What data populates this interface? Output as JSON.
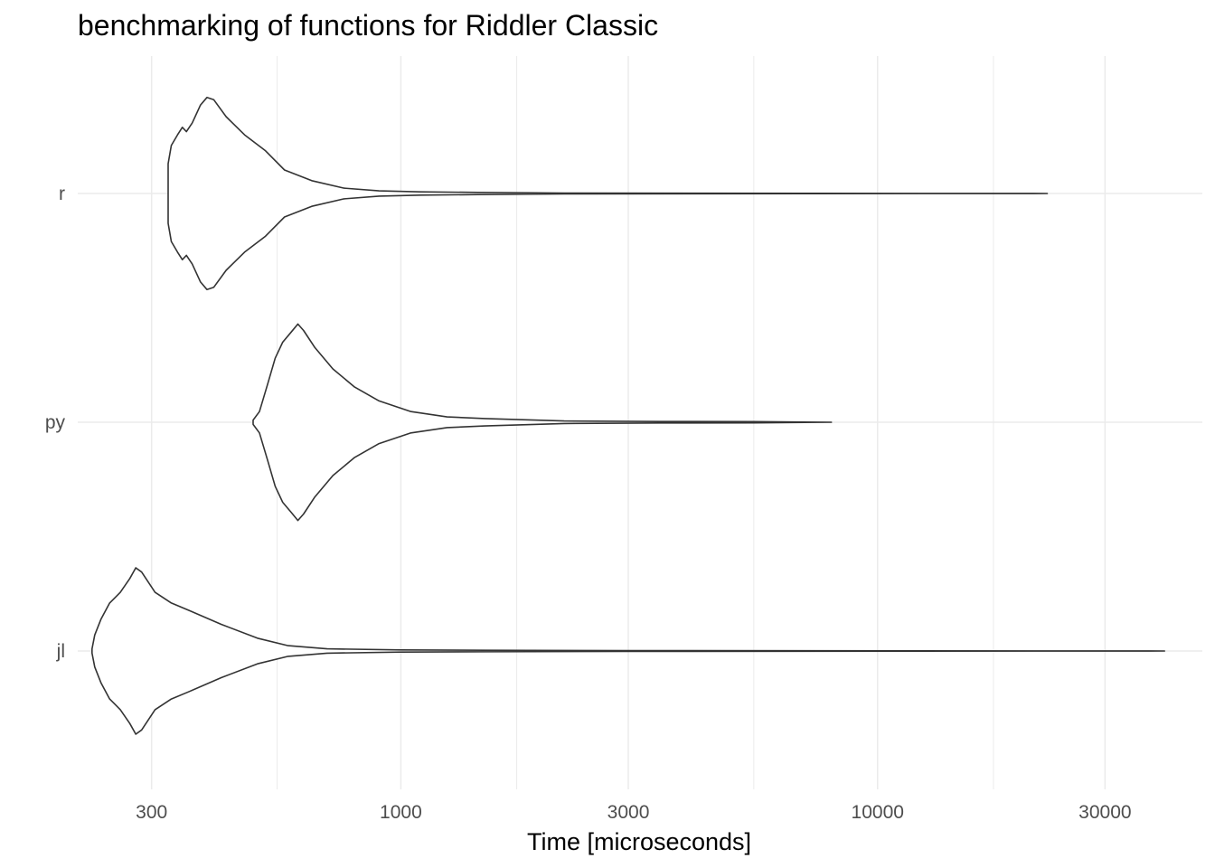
{
  "chart_data": {
    "type": "violin",
    "title": "benchmarking of functions for Riddler Classic",
    "xlabel": "Time [microseconds]",
    "ylabel": "",
    "x_scale": "log10",
    "xlim": [
      210,
      48000
    ],
    "x_ticks": [
      300,
      1000,
      3000,
      10000,
      30000
    ],
    "x_tick_labels": [
      "300",
      "1000",
      "3000",
      "10000",
      "30000"
    ],
    "x_minor_gridlines": [
      550,
      1750,
      5500,
      17500
    ],
    "categories": [
      "r",
      "py",
      "jl"
    ],
    "grid": true,
    "legend": "none",
    "colors": {
      "outline": "#333333",
      "grid": "#ebebeb",
      "tick_text": "#4d4d4d"
    },
    "series": [
      {
        "name": "r",
        "range": [
          325,
          22700
        ],
        "density": [
          [
            325,
            0.28
          ],
          [
            330,
            0.45
          ],
          [
            340,
            0.55
          ],
          [
            348,
            0.62
          ],
          [
            355,
            0.58
          ],
          [
            365,
            0.66
          ],
          [
            380,
            0.83
          ],
          [
            392,
            0.9
          ],
          [
            405,
            0.88
          ],
          [
            430,
            0.72
          ],
          [
            470,
            0.55
          ],
          [
            520,
            0.4
          ],
          [
            570,
            0.22
          ],
          [
            650,
            0.12
          ],
          [
            760,
            0.05
          ],
          [
            900,
            0.025
          ],
          [
            1100,
            0.015
          ],
          [
            1450,
            0.01
          ],
          [
            2200,
            0.004
          ],
          [
            22700,
            0.0
          ]
        ]
      },
      {
        "name": "py",
        "range": [
          490,
          8000
        ],
        "density": [
          [
            490,
            0.02
          ],
          [
            505,
            0.1
          ],
          [
            525,
            0.35
          ],
          [
            545,
            0.6
          ],
          [
            565,
            0.75
          ],
          [
            590,
            0.85
          ],
          [
            608,
            0.92
          ],
          [
            625,
            0.86
          ],
          [
            660,
            0.7
          ],
          [
            720,
            0.5
          ],
          [
            800,
            0.33
          ],
          [
            900,
            0.2
          ],
          [
            1050,
            0.1
          ],
          [
            1250,
            0.05
          ],
          [
            1500,
            0.035
          ],
          [
            2200,
            0.012
          ],
          [
            3500,
            0.007
          ],
          [
            5500,
            0.006
          ],
          [
            8000,
            0.0
          ]
        ]
      },
      {
        "name": "jl",
        "range": [
          225,
          40000
        ],
        "density": [
          [
            225,
            0.02
          ],
          [
            228,
            0.15
          ],
          [
            235,
            0.3
          ],
          [
            245,
            0.45
          ],
          [
            258,
            0.55
          ],
          [
            270,
            0.68
          ],
          [
            278,
            0.78
          ],
          [
            286,
            0.74
          ],
          [
            305,
            0.55
          ],
          [
            330,
            0.45
          ],
          [
            360,
            0.38
          ],
          [
            420,
            0.25
          ],
          [
            500,
            0.12
          ],
          [
            580,
            0.05
          ],
          [
            700,
            0.02
          ],
          [
            1000,
            0.01
          ],
          [
            1500,
            0.007
          ],
          [
            3000,
            0.004
          ],
          [
            40000,
            0.0
          ]
        ]
      }
    ]
  }
}
